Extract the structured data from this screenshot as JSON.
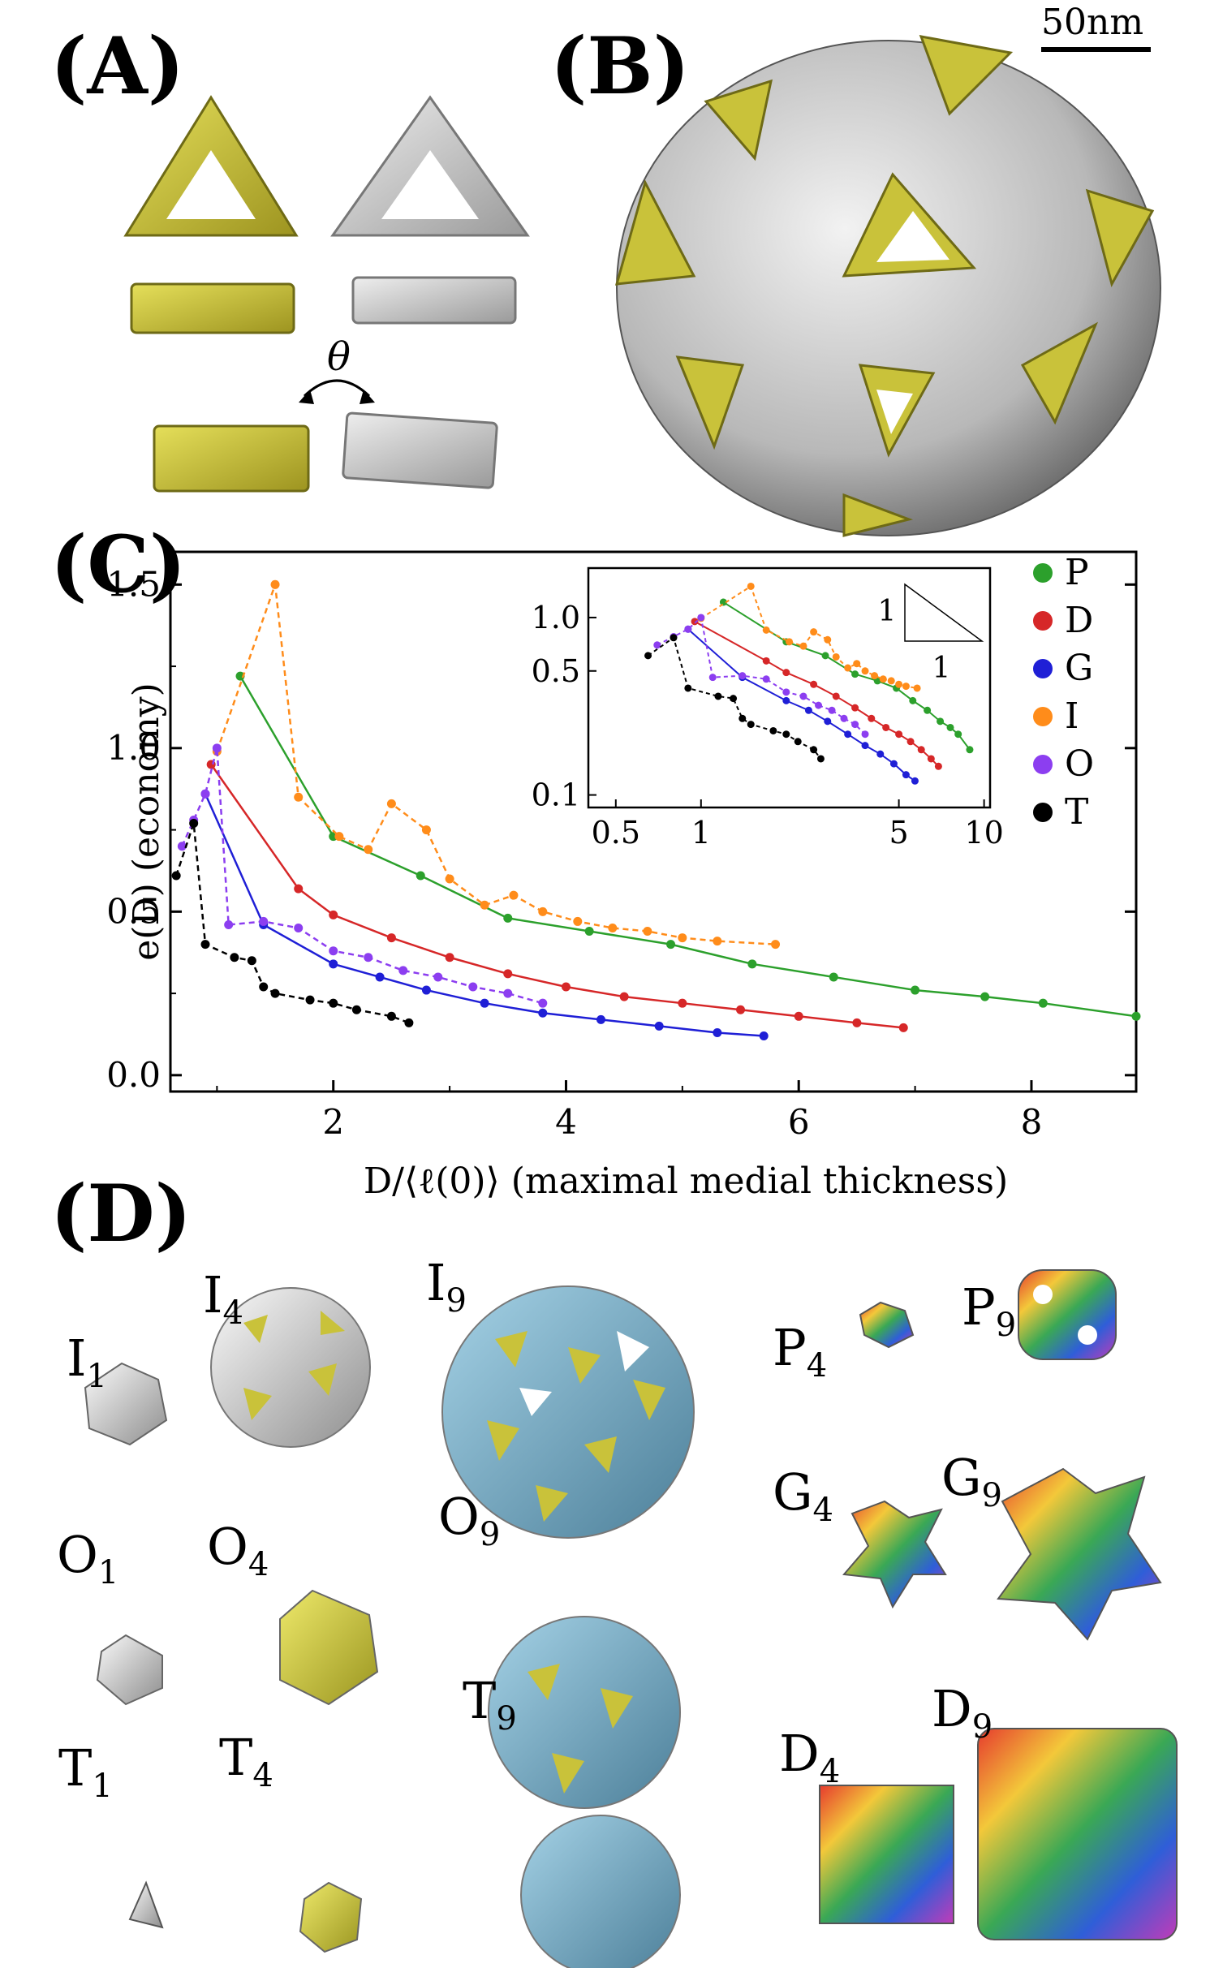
{
  "panels": {
    "a": "(A)",
    "b": "(B)",
    "c": "(C)",
    "d": "(D)"
  },
  "panel_a": {
    "angle_symbol": "θ"
  },
  "panel_b": {
    "scale_bar_label": "50nm"
  },
  "colors": {
    "yellow": "#c9c23a",
    "gray": "#bdbdbd",
    "blue": "#6ea9c4"
  },
  "chart_data": {
    "type": "line",
    "xlabel": "D/⟨ℓ(0)⟩ (maximal medial thickness)",
    "ylabel": "e(D) (economy)",
    "xlim": [
      0.6,
      8.9
    ],
    "ylim": [
      -0.05,
      1.6
    ],
    "xticks": [
      "2",
      "4",
      "6",
      "8"
    ],
    "yticks": [
      "0.0",
      "0.5",
      "1.0",
      "1.5"
    ],
    "legend": [
      "P",
      "D",
      "G",
      "I",
      "O",
      "T"
    ],
    "series": [
      {
        "name": "P",
        "color": "#2ca02c",
        "dash": false,
        "x": [
          1.2,
          2.0,
          2.75,
          3.5,
          4.2,
          4.9,
          5.6,
          6.3,
          7.0,
          7.6,
          8.1,
          8.9
        ],
        "y": [
          1.22,
          0.73,
          0.61,
          0.48,
          0.44,
          0.4,
          0.34,
          0.3,
          0.26,
          0.24,
          0.22,
          0.18
        ]
      },
      {
        "name": "D",
        "color": "#d62728",
        "dash": false,
        "x": [
          0.95,
          1.7,
          2.0,
          2.5,
          3.0,
          3.5,
          4.0,
          4.5,
          5.0,
          5.5,
          6.0,
          6.5,
          6.9
        ],
        "y": [
          0.95,
          0.57,
          0.49,
          0.42,
          0.36,
          0.31,
          0.27,
          0.24,
          0.22,
          0.2,
          0.18,
          0.16,
          0.145
        ]
      },
      {
        "name": "G",
        "color": "#1f1fd6",
        "dash": false,
        "x": [
          0.9,
          1.4,
          2.0,
          2.4,
          2.8,
          3.3,
          3.8,
          4.3,
          4.8,
          5.3,
          5.7
        ],
        "y": [
          0.86,
          0.46,
          0.34,
          0.3,
          0.26,
          0.22,
          0.19,
          0.17,
          0.15,
          0.13,
          0.12
        ]
      },
      {
        "name": "I",
        "color": "#ff8c1a",
        "dash": true,
        "x": [
          1.0,
          1.5,
          1.7,
          2.05,
          2.3,
          2.5,
          2.8,
          3.0,
          3.3,
          3.55,
          3.8,
          4.1,
          4.4,
          4.7,
          5.0,
          5.3,
          5.8
        ],
        "y": [
          0.99,
          1.5,
          0.85,
          0.73,
          0.69,
          0.83,
          0.75,
          0.6,
          0.52,
          0.55,
          0.5,
          0.47,
          0.45,
          0.44,
          0.42,
          0.41,
          0.4
        ]
      },
      {
        "name": "O",
        "color": "#8c3ef0",
        "dash": true,
        "x": [
          0.7,
          0.8,
          0.9,
          1.0,
          1.1,
          1.4,
          1.7,
          2.0,
          2.3,
          2.6,
          2.9,
          3.2,
          3.5,
          3.8
        ],
        "y": [
          0.7,
          0.78,
          0.86,
          1.0,
          0.46,
          0.47,
          0.45,
          0.38,
          0.36,
          0.32,
          0.3,
          0.27,
          0.25,
          0.22
        ]
      },
      {
        "name": "T",
        "color": "#000000",
        "dash": true,
        "x": [
          0.65,
          0.8,
          0.9,
          1.15,
          1.3,
          1.4,
          1.5,
          1.8,
          2.0,
          2.2,
          2.5,
          2.65
        ],
        "y": [
          0.61,
          0.77,
          0.4,
          0.36,
          0.35,
          0.27,
          0.25,
          0.23,
          0.22,
          0.2,
          0.18,
          0.16
        ]
      }
    ],
    "inset": {
      "scale": "log-log",
      "xticks": [
        "0.5",
        "1",
        "5",
        "10"
      ],
      "yticks": [
        "0.1",
        "0.5",
        "1.0"
      ],
      "slope_labels": [
        "1",
        "1"
      ]
    }
  },
  "panel_d": {
    "labels": [
      {
        "base": "I",
        "sub": "1"
      },
      {
        "base": "I",
        "sub": "4"
      },
      {
        "base": "I",
        "sub": "9"
      },
      {
        "base": "O",
        "sub": "1"
      },
      {
        "base": "O",
        "sub": "4"
      },
      {
        "base": "O",
        "sub": "9"
      },
      {
        "base": "T",
        "sub": "1"
      },
      {
        "base": "T",
        "sub": "4"
      },
      {
        "base": "T",
        "sub": "9"
      },
      {
        "base": "P",
        "sub": "4"
      },
      {
        "base": "P",
        "sub": "9"
      },
      {
        "base": "G",
        "sub": "4"
      },
      {
        "base": "G",
        "sub": "9"
      },
      {
        "base": "D",
        "sub": "4"
      },
      {
        "base": "D",
        "sub": "9"
      }
    ]
  }
}
